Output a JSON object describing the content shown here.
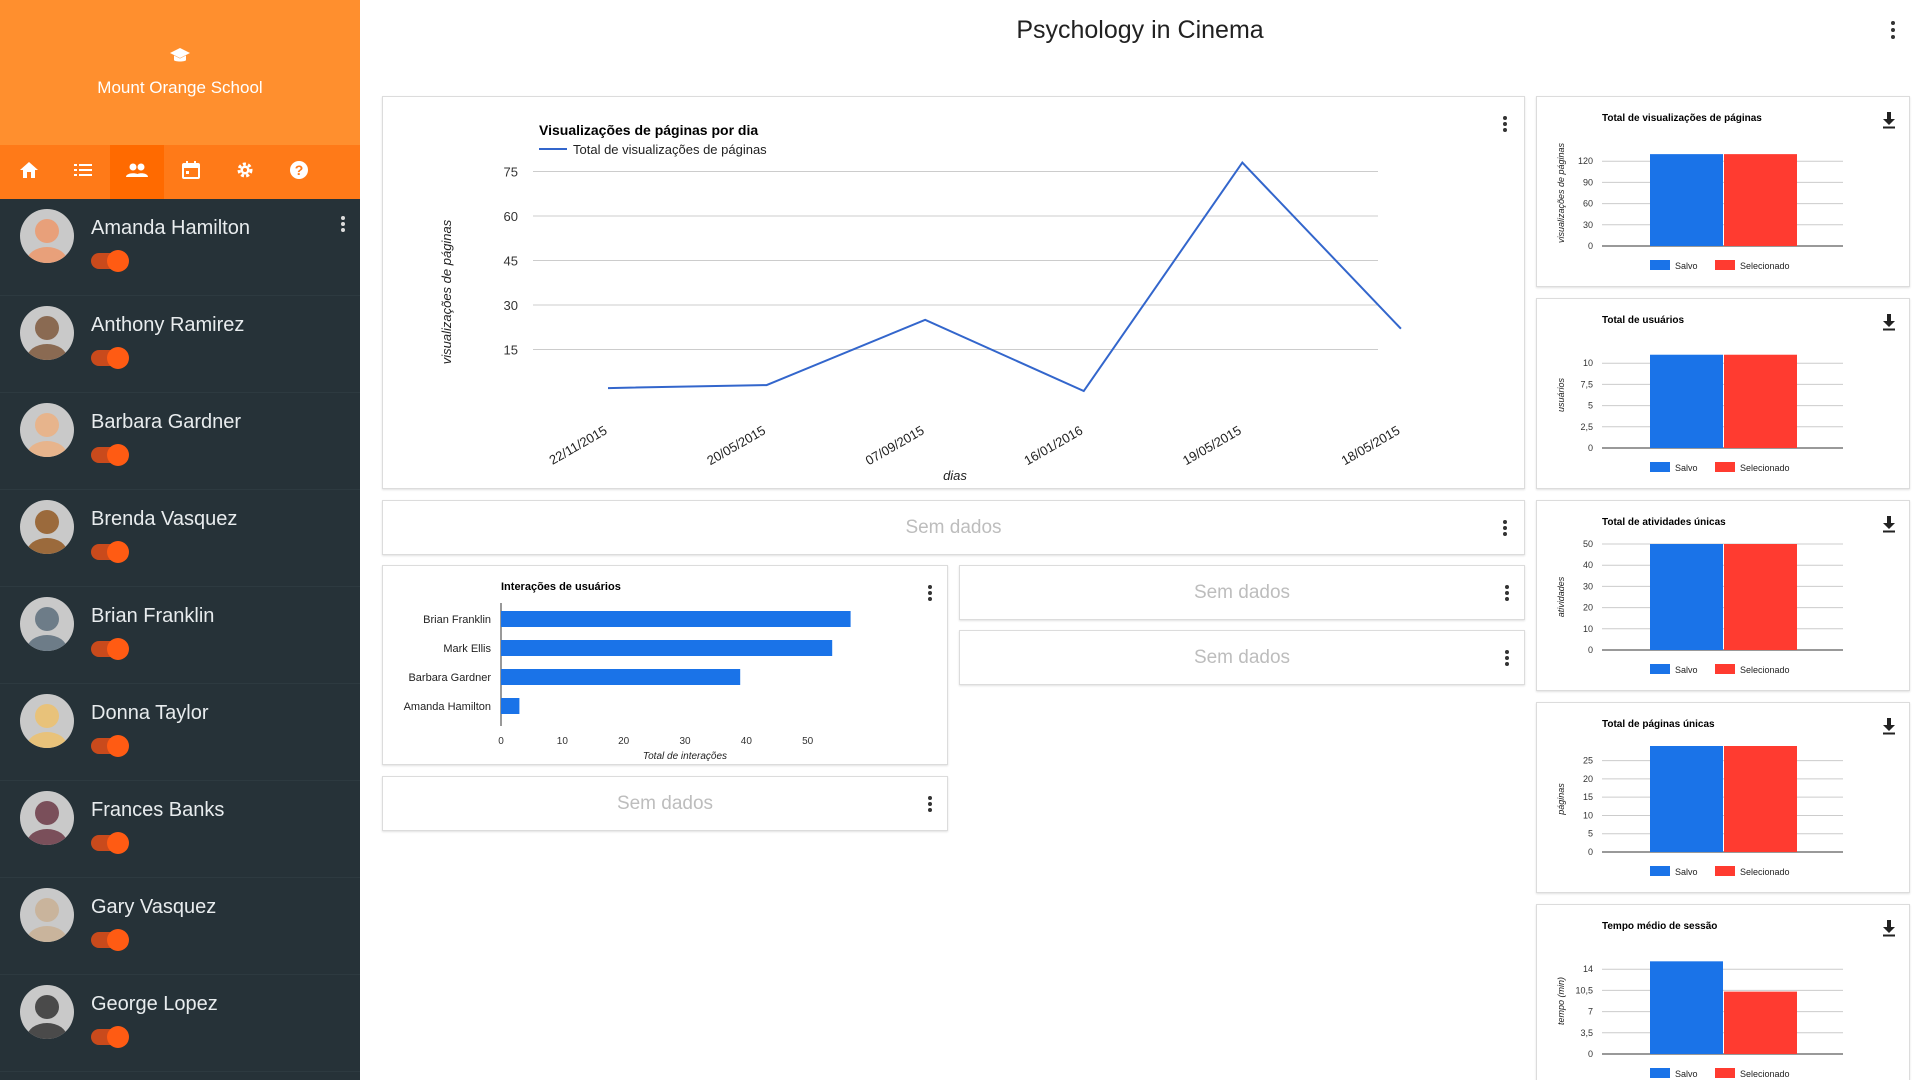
{
  "sidebar": {
    "school_name": "Mount Orange School",
    "nav_items": [
      {
        "icon": "home-icon",
        "active": false
      },
      {
        "icon": "list-icon",
        "active": false
      },
      {
        "icon": "users-icon",
        "active": true
      },
      {
        "icon": "calendar-icon",
        "active": false
      },
      {
        "icon": "gear-icon",
        "active": false
      },
      {
        "icon": "help-icon",
        "active": false
      }
    ],
    "users": [
      {
        "name": "Amanda Hamilton",
        "enabled": true,
        "avatar_color": "#e8a07a"
      },
      {
        "name": "Anthony Ramirez",
        "enabled": true,
        "avatar_color": "#8a6a52"
      },
      {
        "name": "Barbara Gardner",
        "enabled": true,
        "avatar_color": "#e7b48c"
      },
      {
        "name": "Brenda Vasquez",
        "enabled": true,
        "avatar_color": "#9b6a3c"
      },
      {
        "name": "Brian Franklin",
        "enabled": true,
        "avatar_color": "#6d7c88"
      },
      {
        "name": "Donna Taylor",
        "enabled": true,
        "avatar_color": "#e8c27a"
      },
      {
        "name": "Frances Banks",
        "enabled": true,
        "avatar_color": "#7a4f5a"
      },
      {
        "name": "Gary Vasquez",
        "enabled": true,
        "avatar_color": "#c9b49c"
      },
      {
        "name": "George Lopez",
        "enabled": true,
        "avatar_color": "#4a4a4a"
      }
    ]
  },
  "page": {
    "title": "Psychology in Cinema"
  },
  "empty_text": "Sem dados",
  "colors": {
    "accent": "#ff7a18",
    "sidebar_bg": "#263238",
    "salvo": "#1a73e8",
    "selecionado": "#ff3b30",
    "line": "#3366cc"
  },
  "chart_data": [
    {
      "type": "line",
      "title": "Visualizações de páginas por dia",
      "xlabel": "dias",
      "ylabel": "visualizações de páginas",
      "series": [
        {
          "name": "Total de visualizações de páginas",
          "values": [
            2,
            3,
            25,
            1,
            78,
            22
          ]
        }
      ],
      "categories": [
        "22/11/2015",
        "20/05/2015",
        "07/09/2015",
        "16/01/2016",
        "19/05/2015",
        "18/05/2015"
      ],
      "yticks": [
        15,
        30,
        45,
        60,
        75
      ],
      "ylim": [
        0,
        90
      ],
      "grid": true,
      "legend": "top-left"
    },
    {
      "type": "bar",
      "orientation": "horizontal",
      "title": "Interações de usuários",
      "xlabel": "Total de interações",
      "categories": [
        "Brian Franklin",
        "Mark Ellis",
        "Barbara Gardner",
        "Amanda Hamilton"
      ],
      "values": [
        57,
        54,
        39,
        3
      ],
      "xticks": [
        0,
        10,
        20,
        30,
        40,
        50
      ],
      "xlim": [
        0,
        60
      ]
    },
    {
      "type": "bar",
      "title": "Total de visualizações de páginas",
      "ylabel": "visualizações de páginas",
      "series": [
        {
          "name": "Salvo",
          "values": [
            130
          ]
        },
        {
          "name": "Selecionado",
          "values": [
            130
          ]
        }
      ],
      "yticks": [
        "0",
        "30",
        "60",
        "90",
        "120"
      ],
      "ylim": [
        0,
        150
      ]
    },
    {
      "type": "bar",
      "title": "Total de usuários",
      "ylabel": "usuários",
      "series": [
        {
          "name": "Salvo",
          "values": [
            11
          ]
        },
        {
          "name": "Selecionado",
          "values": [
            11
          ]
        }
      ],
      "yticks": [
        "0",
        "2,5",
        "5",
        "7,5",
        "10"
      ],
      "ylim": [
        0,
        12.5
      ]
    },
    {
      "type": "bar",
      "title": "Total de atividades únicas",
      "ylabel": "atividades",
      "series": [
        {
          "name": "Salvo",
          "values": [
            50
          ]
        },
        {
          "name": "Selecionado",
          "values": [
            50
          ]
        }
      ],
      "yticks": [
        "0",
        "10",
        "20",
        "30",
        "40",
        "50"
      ],
      "ylim": [
        0,
        50
      ]
    },
    {
      "type": "bar",
      "title": "Total de páginas únicas",
      "ylabel": "páginas",
      "series": [
        {
          "name": "Salvo",
          "values": [
            29
          ]
        },
        {
          "name": "Selecionado",
          "values": [
            29
          ]
        }
      ],
      "yticks": [
        "0",
        "5",
        "10",
        "15",
        "20",
        "25"
      ],
      "ylim": [
        0,
        29
      ]
    },
    {
      "type": "bar",
      "title": "Tempo médio de sessão",
      "ylabel": "tempo (min)",
      "series": [
        {
          "name": "Salvo",
          "values": [
            15.3
          ]
        },
        {
          "name": "Selecionado",
          "values": [
            10.3
          ]
        }
      ],
      "yticks": [
        "0",
        "3,5",
        "7",
        "10,5",
        "14"
      ],
      "ylim": [
        0,
        17.5
      ]
    }
  ]
}
